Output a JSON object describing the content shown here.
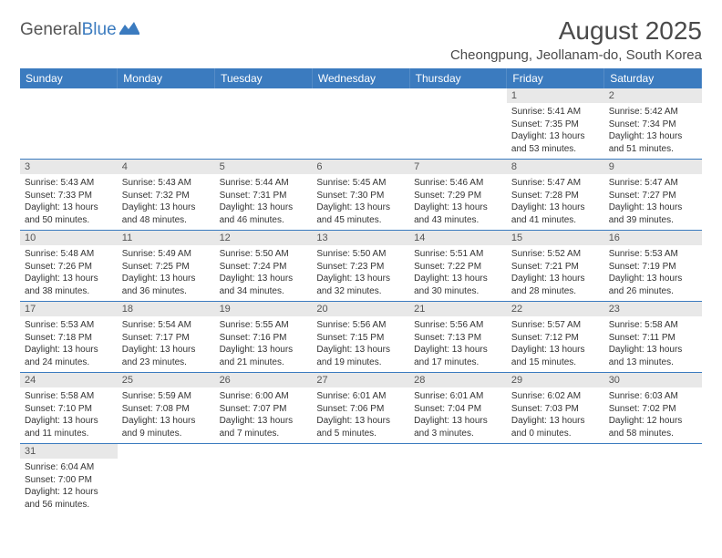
{
  "logo": {
    "word1": "General",
    "word2": "Blue",
    "flag_color": "#3b7bbf"
  },
  "title": "August 2025",
  "location": "Cheongpung, Jeollanam-do, South Korea",
  "colors": {
    "header_bg": "#3b7bbf",
    "header_text": "#ffffff",
    "daynum_bg": "#e8e8e8",
    "cell_border": "#3b7bbf",
    "body_text": "#333333"
  },
  "weekdays": [
    "Sunday",
    "Monday",
    "Tuesday",
    "Wednesday",
    "Thursday",
    "Friday",
    "Saturday"
  ],
  "weeks": [
    [
      null,
      null,
      null,
      null,
      null,
      {
        "n": "1",
        "sr": "5:41 AM",
        "ss": "7:35 PM",
        "dl": "13 hours and 53 minutes."
      },
      {
        "n": "2",
        "sr": "5:42 AM",
        "ss": "7:34 PM",
        "dl": "13 hours and 51 minutes."
      }
    ],
    [
      {
        "n": "3",
        "sr": "5:43 AM",
        "ss": "7:33 PM",
        "dl": "13 hours and 50 minutes."
      },
      {
        "n": "4",
        "sr": "5:43 AM",
        "ss": "7:32 PM",
        "dl": "13 hours and 48 minutes."
      },
      {
        "n": "5",
        "sr": "5:44 AM",
        "ss": "7:31 PM",
        "dl": "13 hours and 46 minutes."
      },
      {
        "n": "6",
        "sr": "5:45 AM",
        "ss": "7:30 PM",
        "dl": "13 hours and 45 minutes."
      },
      {
        "n": "7",
        "sr": "5:46 AM",
        "ss": "7:29 PM",
        "dl": "13 hours and 43 minutes."
      },
      {
        "n": "8",
        "sr": "5:47 AM",
        "ss": "7:28 PM",
        "dl": "13 hours and 41 minutes."
      },
      {
        "n": "9",
        "sr": "5:47 AM",
        "ss": "7:27 PM",
        "dl": "13 hours and 39 minutes."
      }
    ],
    [
      {
        "n": "10",
        "sr": "5:48 AM",
        "ss": "7:26 PM",
        "dl": "13 hours and 38 minutes."
      },
      {
        "n": "11",
        "sr": "5:49 AM",
        "ss": "7:25 PM",
        "dl": "13 hours and 36 minutes."
      },
      {
        "n": "12",
        "sr": "5:50 AM",
        "ss": "7:24 PM",
        "dl": "13 hours and 34 minutes."
      },
      {
        "n": "13",
        "sr": "5:50 AM",
        "ss": "7:23 PM",
        "dl": "13 hours and 32 minutes."
      },
      {
        "n": "14",
        "sr": "5:51 AM",
        "ss": "7:22 PM",
        "dl": "13 hours and 30 minutes."
      },
      {
        "n": "15",
        "sr": "5:52 AM",
        "ss": "7:21 PM",
        "dl": "13 hours and 28 minutes."
      },
      {
        "n": "16",
        "sr": "5:53 AM",
        "ss": "7:19 PM",
        "dl": "13 hours and 26 minutes."
      }
    ],
    [
      {
        "n": "17",
        "sr": "5:53 AM",
        "ss": "7:18 PM",
        "dl": "13 hours and 24 minutes."
      },
      {
        "n": "18",
        "sr": "5:54 AM",
        "ss": "7:17 PM",
        "dl": "13 hours and 23 minutes."
      },
      {
        "n": "19",
        "sr": "5:55 AM",
        "ss": "7:16 PM",
        "dl": "13 hours and 21 minutes."
      },
      {
        "n": "20",
        "sr": "5:56 AM",
        "ss": "7:15 PM",
        "dl": "13 hours and 19 minutes."
      },
      {
        "n": "21",
        "sr": "5:56 AM",
        "ss": "7:13 PM",
        "dl": "13 hours and 17 minutes."
      },
      {
        "n": "22",
        "sr": "5:57 AM",
        "ss": "7:12 PM",
        "dl": "13 hours and 15 minutes."
      },
      {
        "n": "23",
        "sr": "5:58 AM",
        "ss": "7:11 PM",
        "dl": "13 hours and 13 minutes."
      }
    ],
    [
      {
        "n": "24",
        "sr": "5:58 AM",
        "ss": "7:10 PM",
        "dl": "13 hours and 11 minutes."
      },
      {
        "n": "25",
        "sr": "5:59 AM",
        "ss": "7:08 PM",
        "dl": "13 hours and 9 minutes."
      },
      {
        "n": "26",
        "sr": "6:00 AM",
        "ss": "7:07 PM",
        "dl": "13 hours and 7 minutes."
      },
      {
        "n": "27",
        "sr": "6:01 AM",
        "ss": "7:06 PM",
        "dl": "13 hours and 5 minutes."
      },
      {
        "n": "28",
        "sr": "6:01 AM",
        "ss": "7:04 PM",
        "dl": "13 hours and 3 minutes."
      },
      {
        "n": "29",
        "sr": "6:02 AM",
        "ss": "7:03 PM",
        "dl": "13 hours and 0 minutes."
      },
      {
        "n": "30",
        "sr": "6:03 AM",
        "ss": "7:02 PM",
        "dl": "12 hours and 58 minutes."
      }
    ],
    [
      {
        "n": "31",
        "sr": "6:04 AM",
        "ss": "7:00 PM",
        "dl": "12 hours and 56 minutes."
      },
      null,
      null,
      null,
      null,
      null,
      null
    ]
  ],
  "labels": {
    "sunrise": "Sunrise:",
    "sunset": "Sunset:",
    "daylight": "Daylight:"
  }
}
